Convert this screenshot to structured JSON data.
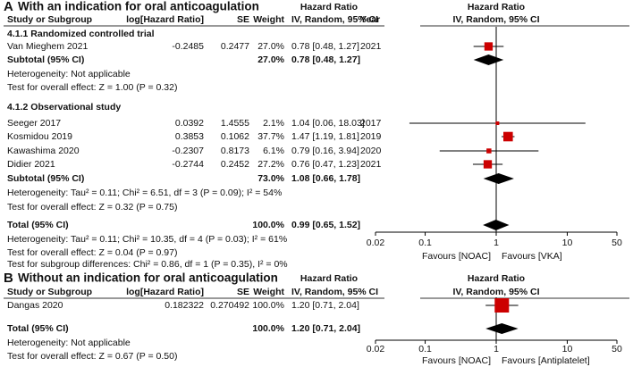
{
  "chart_data": [
    {
      "type": "forest",
      "panel": "A",
      "title": "With an indication for oral anticoagulation",
      "columns": {
        "study": "Study or Subgroup",
        "log_hr": "log[Hazard Ratio]",
        "se": "SE",
        "weight": "Weight",
        "ci": "IV, Random, 95% CI",
        "year": "Year"
      },
      "ci_header": "Hazard Ratio",
      "plot_header": "Hazard Ratio",
      "plot_subheader": "IV, Random, 95% CI",
      "log_scale": true,
      "xlim": [
        0.02,
        50
      ],
      "xticks": [
        0.02,
        0.1,
        1,
        10,
        50
      ],
      "favours_left": "Favours [NOAC]",
      "favours_right": "Favours [VKA]",
      "marker_color": "#cc0000",
      "rows": [
        {
          "kind": "group",
          "label": "4.1.1 Randomized controlled trial"
        },
        {
          "kind": "study",
          "label": "Van Mieghem 2021",
          "log_hr": -0.2485,
          "se": 0.2477,
          "weight": 27.0,
          "weight_label": "27.0%",
          "hr": 0.78,
          "lo": 0.48,
          "hi": 1.27,
          "ci_label": "0.78 [0.48, 1.27]",
          "year": 2021
        },
        {
          "kind": "subtotal",
          "label": "Subtotal (95% CI)",
          "weight": 27.0,
          "weight_label": "27.0%",
          "hr": 0.78,
          "lo": 0.48,
          "hi": 1.27,
          "ci_label": "0.78 [0.48, 1.27]"
        },
        {
          "kind": "text",
          "label": "Heterogeneity: Not applicable"
        },
        {
          "kind": "text",
          "label": "Test for overall effect: Z = 1.00 (P = 0.32)"
        },
        {
          "kind": "group",
          "label": "4.1.2 Observational study"
        },
        {
          "kind": "study",
          "label": "Seeger 2017",
          "log_hr": 0.0392,
          "se": 1.4555,
          "weight": 2.1,
          "weight_label": "2.1%",
          "hr": 1.04,
          "lo": 0.06,
          "hi": 18.03,
          "ci_label": "1.04 [0.06, 18.03]",
          "year": 2017
        },
        {
          "kind": "study",
          "label": "Kosmidou 2019",
          "log_hr": 0.3853,
          "se": 0.1062,
          "weight": 37.7,
          "weight_label": "37.7%",
          "hr": 1.47,
          "lo": 1.19,
          "hi": 1.81,
          "ci_label": "1.47 [1.19, 1.81]",
          "year": 2019
        },
        {
          "kind": "study",
          "label": "Kawashima 2020",
          "log_hr": -0.2307,
          "se": 0.8173,
          "weight": 6.1,
          "weight_label": "6.1%",
          "hr": 0.79,
          "lo": 0.16,
          "hi": 3.94,
          "ci_label": "0.79 [0.16, 3.94]",
          "year": 2020
        },
        {
          "kind": "study",
          "label": "Didier 2021",
          "log_hr": -0.2744,
          "se": 0.2452,
          "weight": 27.2,
          "weight_label": "27.2%",
          "hr": 0.76,
          "lo": 0.47,
          "hi": 1.23,
          "ci_label": "0.76 [0.47, 1.23]",
          "year": 2021
        },
        {
          "kind": "subtotal",
          "label": "Subtotal (95% CI)",
          "weight": 73.0,
          "weight_label": "73.0%",
          "hr": 1.08,
          "lo": 0.66,
          "hi": 1.78,
          "ci_label": "1.08 [0.66, 1.78]"
        },
        {
          "kind": "text",
          "label": "Heterogeneity: Tau² = 0.11; Chi² = 6.51, df = 3 (P = 0.09); I² = 54%"
        },
        {
          "kind": "text",
          "label": "Test for overall effect: Z = 0.32 (P = 0.75)"
        },
        {
          "kind": "total",
          "label": "Total (95% CI)",
          "weight": 100.0,
          "weight_label": "100.0%",
          "hr": 0.99,
          "lo": 0.65,
          "hi": 1.52,
          "ci_label": "0.99 [0.65, 1.52]"
        },
        {
          "kind": "text",
          "label": "Heterogeneity: Tau² = 0.11; Chi² = 10.35, df = 4 (P = 0.03); I² = 61%"
        },
        {
          "kind": "text",
          "label": "Test for overall effect: Z = 0.04 (P = 0.97)"
        },
        {
          "kind": "text",
          "label": "Test for subgroup differences: Chi² = 0.86, df = 1 (P = 0.35), I² = 0%"
        }
      ]
    },
    {
      "type": "forest",
      "panel": "B",
      "title": "Without an indication for oral anticoagulation",
      "columns": {
        "study": "Study or Subgroup",
        "log_hr": "log[Hazard Ratio]",
        "se": "SE",
        "weight": "Weight",
        "ci": "IV, Random, 95% CI"
      },
      "ci_header": "Hazard Ratio",
      "plot_header": "Hazard Ratio",
      "plot_subheader": "IV, Random, 95% CI",
      "log_scale": true,
      "xlim": [
        0.02,
        50
      ],
      "xticks": [
        0.02,
        0.1,
        1,
        10,
        50
      ],
      "favours_left": "Favours [NOAC]",
      "favours_right": "Favours [Antiplatelet]",
      "marker_color": "#cc0000",
      "rows": [
        {
          "kind": "study",
          "label": "Dangas 2020",
          "log_hr": 0.182322,
          "se": 0.270492,
          "weight": 100.0,
          "weight_label": "100.0%",
          "hr": 1.2,
          "lo": 0.71,
          "hi": 2.04,
          "ci_label": "1.20 [0.71, 2.04]"
        },
        {
          "kind": "total",
          "label": "Total (95% CI)",
          "weight": 100.0,
          "weight_label": "100.0%",
          "hr": 1.2,
          "lo": 0.71,
          "hi": 2.04,
          "ci_label": "1.20 [0.71, 2.04]"
        },
        {
          "kind": "text",
          "label": "Heterogeneity: Not applicable"
        },
        {
          "kind": "text",
          "label": "Test for overall effect: Z = 0.67 (P = 0.50)"
        }
      ]
    }
  ]
}
